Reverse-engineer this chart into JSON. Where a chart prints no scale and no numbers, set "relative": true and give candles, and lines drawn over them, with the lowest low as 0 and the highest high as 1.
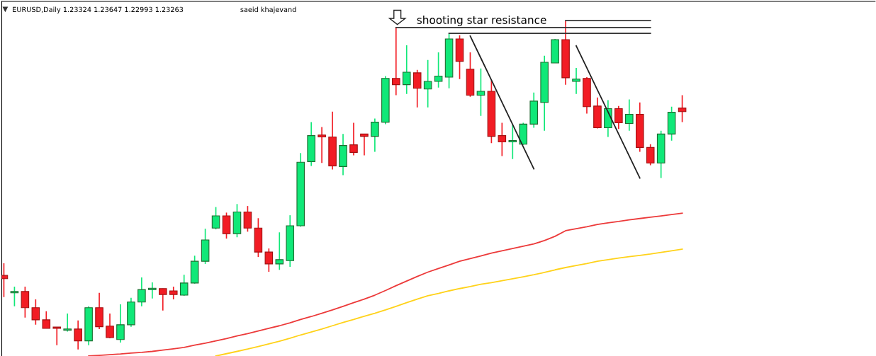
{
  "chart_data": {
    "type": "candlestick",
    "title": "EURUSD,Daily 1.23324 1.23647 1.22993 1.23263",
    "subtitle": "saeid khajevand",
    "relative": true,
    "grid": false,
    "legend": false,
    "annotations": [
      "shooting star resistance"
    ],
    "categories": [
      null,
      null,
      null,
      null,
      null,
      null,
      null,
      null,
      null,
      null,
      null,
      null,
      null,
      null,
      null,
      null,
      null,
      null,
      null,
      null,
      null,
      null,
      null,
      null,
      null,
      null,
      null,
      null,
      null,
      null,
      null,
      null,
      null,
      null,
      null,
      null,
      null,
      null,
      null,
      null,
      null,
      null,
      null,
      null,
      null,
      null,
      null,
      null,
      null,
      null,
      null,
      null,
      null,
      null,
      null,
      null,
      null,
      null,
      null,
      null,
      null,
      null,
      null,
      null,
      null
    ],
    "ohlc": [
      [
        0.225,
        0.262,
        0.159,
        0.215
      ],
      [
        0.172,
        0.191,
        0.131,
        0.174
      ],
      [
        0.176,
        0.191,
        0.097,
        0.127
      ],
      [
        0.127,
        0.152,
        0.075,
        0.09
      ],
      [
        0.09,
        0.116,
        0.064,
        0.064
      ],
      [
        0.067,
        0.067,
        0.013,
        0.064
      ],
      [
        0.058,
        0.109,
        0.054,
        0.062
      ],
      [
        0.062,
        0.088,
        0,
        0.026
      ],
      [
        0.026,
        0.131,
        0.013,
        0.127
      ],
      [
        0.127,
        0.172,
        0.062,
        0.069
      ],
      [
        0.071,
        0.109,
        0.034,
        0.036
      ],
      [
        0.03,
        0.137,
        0.021,
        0.075
      ],
      [
        0.075,
        0.157,
        0.069,
        0.144
      ],
      [
        0.144,
        0.219,
        0.131,
        0.182
      ],
      [
        0.182,
        0.204,
        0.155,
        0.185
      ],
      [
        0.185,
        0.185,
        0.118,
        0.167
      ],
      [
        0.178,
        0.191,
        0.152,
        0.167
      ],
      [
        0.165,
        0.227,
        0.163,
        0.202
      ],
      [
        0.202,
        0.285,
        0.2,
        0.268
      ],
      [
        0.268,
        0.367,
        0.26,
        0.333
      ],
      [
        0.369,
        0.433,
        0.365,
        0.406
      ],
      [
        0.406,
        0.416,
        0.337,
        0.352
      ],
      [
        0.352,
        0.442,
        0.341,
        0.418
      ],
      [
        0.418,
        0.436,
        0.358,
        0.369
      ],
      [
        0.369,
        0.399,
        0.281,
        0.296
      ],
      [
        0.296,
        0.307,
        0.236,
        0.26
      ],
      [
        0.26,
        0.356,
        0.242,
        0.273
      ],
      [
        0.27,
        0.408,
        0.251,
        0.376
      ],
      [
        0.376,
        0.597,
        0.373,
        0.569
      ],
      [
        0.571,
        0.691,
        0.558,
        0.65
      ],
      [
        0.652,
        0.676,
        0.567,
        0.646
      ],
      [
        0.646,
        0.723,
        0.547,
        0.558
      ],
      [
        0.556,
        0.655,
        0.53,
        0.62
      ],
      [
        0.622,
        0.689,
        0.59,
        0.599
      ],
      [
        0.655,
        0.655,
        0.59,
        0.648
      ],
      [
        0.648,
        0.702,
        0.601,
        0.691
      ],
      [
        0.691,
        0.831,
        0.685,
        0.824
      ],
      [
        0.824,
        0.979,
        0.773,
        0.805
      ],
      [
        0.805,
        0.925,
        0.777,
        0.843
      ],
      [
        0.841,
        0.85,
        0.736,
        0.794
      ],
      [
        0.792,
        0.88,
        0.736,
        0.815
      ],
      [
        0.815,
        0.903,
        0.796,
        0.831
      ],
      [
        0.828,
        0.959,
        0.794,
        0.944
      ],
      [
        0.944,
        0.955,
        0.822,
        0.876
      ],
      [
        0.852,
        0.903,
        0.768,
        0.773
      ],
      [
        0.773,
        0.854,
        0.71,
        0.785
      ],
      [
        0.785,
        0.818,
        0.627,
        0.648
      ],
      [
        0.65,
        0.689,
        0.588,
        0.631
      ],
      [
        0.631,
        0.682,
        0.579,
        0.635
      ],
      [
        0.624,
        0.689,
        0.622,
        0.685
      ],
      [
        0.685,
        0.781,
        0.674,
        0.755
      ],
      [
        0.751,
        0.893,
        0.665,
        0.873
      ],
      [
        0.871,
        0.944,
        0.871,
        0.942
      ],
      [
        0.942,
        1,
        0.805,
        0.826
      ],
      [
        0.815,
        0.856,
        0.777,
        0.822
      ],
      [
        0.824,
        0.828,
        0.717,
        0.738
      ],
      [
        0.74,
        0.766,
        0.672,
        0.674
      ],
      [
        0.674,
        0.758,
        0.646,
        0.732
      ],
      [
        0.732,
        0.74,
        0.67,
        0.689
      ],
      [
        0.687,
        0.76,
        0.665,
        0.715
      ],
      [
        0.715,
        0.751,
        0.601,
        0.614
      ],
      [
        0.614,
        0.624,
        0.56,
        0.567
      ],
      [
        0.567,
        0.665,
        0.521,
        0.655
      ],
      [
        0.655,
        0.738,
        0.635,
        0.721
      ],
      [
        0.734,
        0.773,
        0.691,
        0.723
      ]
    ],
    "colors": [
      "#f21c24",
      "#10e878",
      "#f21c24",
      "#f21c24",
      "#f21c24",
      "#f21c24",
      "#10e878",
      "#f21c24",
      "#10e878",
      "#f21c24",
      "#f21c24",
      "#10e878",
      "#10e878",
      "#10e878",
      "#10e878",
      "#f21c24",
      "#f21c24",
      "#10e878",
      "#10e878",
      "#10e878",
      "#10e878",
      "#f21c24",
      "#10e878",
      "#f21c24",
      "#f21c24",
      "#f21c24",
      "#10e878",
      "#10e878",
      "#10e878",
      "#10e878",
      "#f21c24",
      "#f21c24",
      "#10e878",
      "#f21c24",
      "#f21c24",
      "#10e878",
      "#10e878",
      "#f21c24",
      "#10e878",
      "#f21c24",
      "#10e878",
      "#10e878",
      "#10e878",
      "#f21c24",
      "#f21c24",
      "#10e878",
      "#f21c24",
      "#f21c24",
      "#10e878",
      "#10e878",
      "#10e878",
      "#10e878",
      "#10e878",
      "#f21c24",
      "#10e878",
      "#f21c24",
      "#f21c24",
      "#10e878",
      "#f21c24",
      "#10e878",
      "#f21c24",
      "#f21c24",
      "#10e878",
      "#10e878",
      "#f21c24"
    ],
    "series": [
      {
        "type": "line",
        "color": "#ec3a3a",
        "values": [
          null,
          null,
          null,
          null,
          null,
          null,
          null,
          null,
          -0.02,
          -0.018,
          -0.016,
          -0.014,
          -0.011,
          -0.009,
          -0.006,
          -0.002,
          0.002,
          0.006,
          0.013,
          0.019,
          0.026,
          0.033,
          0.041,
          0.048,
          0.056,
          0.064,
          0.072,
          0.081,
          0.091,
          0.1,
          0.11,
          0.12,
          0.131,
          0.142,
          0.153,
          0.165,
          0.179,
          0.194,
          0.208,
          0.222,
          0.235,
          0.246,
          0.257,
          0.268,
          0.276,
          0.284,
          0.293,
          0.3,
          0.307,
          0.314,
          0.321,
          0.331,
          0.344,
          0.361,
          0.367,
          0.373,
          0.38,
          0.385,
          0.389,
          0.394,
          0.398,
          0.402,
          0.406,
          0.41,
          0.414
        ]
      },
      {
        "type": "line",
        "color": "#ffd21a",
        "values": [
          null,
          null,
          null,
          null,
          null,
          null,
          null,
          null,
          null,
          null,
          null,
          null,
          null,
          null,
          null,
          null,
          null,
          null,
          null,
          null,
          -0.02,
          -0.013,
          -0.006,
          0.001,
          0.009,
          0.017,
          0.025,
          0.034,
          0.044,
          0.053,
          0.062,
          0.072,
          0.082,
          0.091,
          0.101,
          0.11,
          0.12,
          0.131,
          0.142,
          0.153,
          0.163,
          0.17,
          0.178,
          0.185,
          0.191,
          0.198,
          0.203,
          0.209,
          0.215,
          0.221,
          0.227,
          0.234,
          0.242,
          0.249,
          0.255,
          0.261,
          0.268,
          0.273,
          0.278,
          0.282,
          0.286,
          0.29,
          0.295,
          0.3,
          0.305
        ]
      },
      {
        "type": "line",
        "color": "#333333",
        "values": [
          null,
          null,
          null,
          null,
          null,
          null,
          null,
          null,
          null,
          null,
          null,
          null,
          null,
          null,
          null,
          null,
          null,
          null,
          null,
          null,
          null,
          null,
          null,
          null,
          null,
          null,
          null,
          null,
          null,
          null,
          null,
          null,
          null,
          null,
          null,
          null,
          null,
          null,
          null,
          null,
          null,
          null,
          null,
          null,
          null,
          null,
          null,
          null,
          null,
          null,
          null,
          null,
          null,
          1,
          1,
          1,
          1,
          1,
          1,
          1,
          1,
          1,
          null,
          null,
          null
        ]
      },
      {
        "type": "line",
        "color": "#333333",
        "values": [
          null,
          null,
          null,
          null,
          null,
          null,
          null,
          null,
          null,
          null,
          null,
          null,
          null,
          null,
          null,
          null,
          null,
          null,
          null,
          null,
          null,
          null,
          null,
          null,
          null,
          null,
          null,
          null,
          null,
          null,
          null,
          null,
          null,
          null,
          null,
          null,
          null,
          0.979,
          0.979,
          0.979,
          0.979,
          0.979,
          0.979,
          0.979,
          0.979,
          0.979,
          0.979,
          0.979,
          0.979,
          0.979,
          0.979,
          0.979,
          0.979,
          0.979,
          0.979,
          0.979,
          0.979,
          0.979,
          0.979,
          0.979,
          0.979,
          0.979,
          null,
          null,
          null
        ]
      },
      {
        "type": "line",
        "color": "#333333",
        "values": [
          null,
          null,
          null,
          null,
          null,
          null,
          null,
          null,
          null,
          null,
          null,
          null,
          null,
          null,
          null,
          null,
          null,
          null,
          null,
          null,
          null,
          null,
          null,
          null,
          null,
          null,
          null,
          null,
          null,
          null,
          null,
          null,
          null,
          null,
          null,
          null,
          null,
          null,
          null,
          null,
          null,
          null,
          0.961,
          0.961,
          0.961,
          0.961,
          0.961,
          0.961,
          0.961,
          0.961,
          0.961,
          0.961,
          0.961,
          0.961,
          0.961,
          0.961,
          0.961,
          0.961,
          0.961,
          0.961,
          0.961,
          0.961,
          null,
          null,
          null
        ]
      },
      {
        "type": "line",
        "color": "#222222",
        "values": [
          null,
          null,
          null,
          null,
          null,
          null,
          null,
          null,
          null,
          null,
          null,
          null,
          null,
          null,
          null,
          null,
          null,
          null,
          null,
          null,
          null,
          null,
          null,
          null,
          null,
          null,
          null,
          null,
          null,
          null,
          null,
          null,
          null,
          null,
          null,
          null,
          null,
          null,
          null,
          null,
          null,
          null,
          null,
          null,
          0.953,
          0.886,
          0.819,
          0.751,
          0.684,
          0.616,
          0.549,
          null,
          null,
          null,
          null,
          null,
          null,
          null,
          null,
          null,
          null,
          null,
          null,
          null,
          null
        ]
      },
      {
        "type": "line",
        "color": "#222222",
        "values": [
          null,
          null,
          null,
          null,
          null,
          null,
          null,
          null,
          null,
          null,
          null,
          null,
          null,
          null,
          null,
          null,
          null,
          null,
          null,
          null,
          null,
          null,
          null,
          null,
          null,
          null,
          null,
          null,
          null,
          null,
          null,
          null,
          null,
          null,
          null,
          null,
          null,
          null,
          null,
          null,
          null,
          null,
          null,
          null,
          null,
          null,
          null,
          null,
          null,
          null,
          null,
          null,
          null,
          null,
          0.923,
          0.856,
          0.789,
          0.722,
          0.655,
          0.588,
          0.521,
          null,
          null,
          null,
          null
        ]
      }
    ]
  }
}
